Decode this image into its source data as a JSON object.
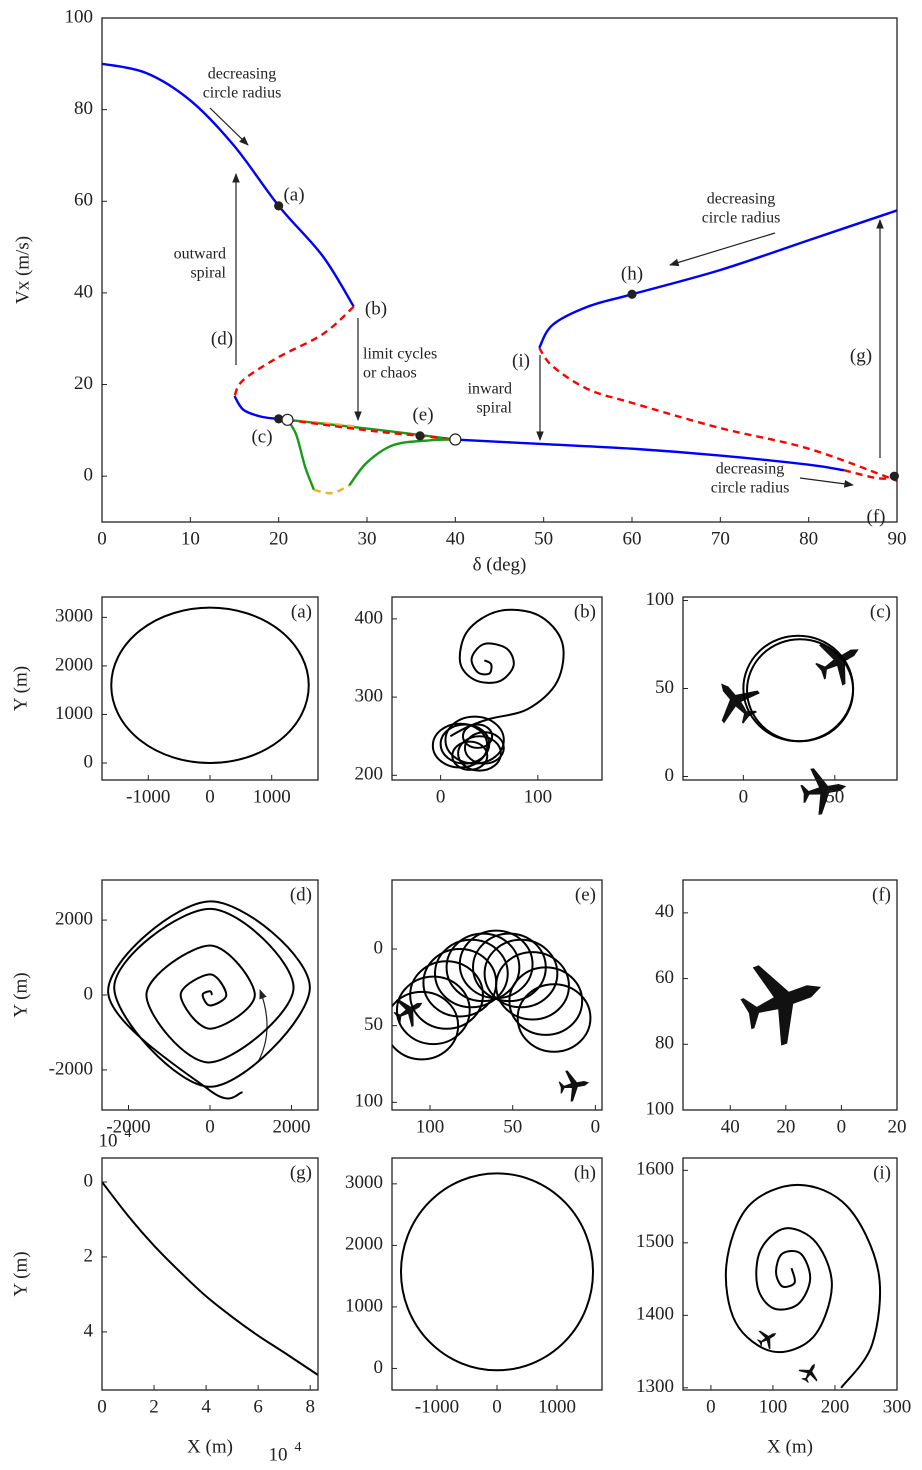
{
  "chart_data": [
    {
      "type": "line",
      "xlabel": "δ (deg)",
      "ylabel": "Vx (m/s)",
      "xlim": [
        0,
        90
      ],
      "ylim": [
        -10,
        100
      ],
      "xticks": [
        0,
        10,
        20,
        30,
        40,
        50,
        60,
        70,
        80,
        90
      ],
      "yticks": [
        0,
        20,
        40,
        60,
        80,
        100
      ],
      "series": [
        {
          "color": "#0000ff",
          "dash": false,
          "x": [
            0,
            5,
            10,
            15,
            20,
            25,
            28.5
          ],
          "y": [
            90,
            88,
            82,
            72,
            59,
            48,
            37
          ]
        },
        {
          "color": "#ff0000",
          "dash": true,
          "x": [
            28.5,
            25,
            20,
            16,
            15
          ],
          "y": [
            37,
            31,
            26,
            21,
            17.5
          ]
        },
        {
          "color": "#0000ff",
          "dash": false,
          "x": [
            15,
            16,
            18,
            20,
            21
          ],
          "y": [
            17.5,
            14.5,
            13,
            12.5,
            12.3
          ]
        },
        {
          "color": "#1a9a1a",
          "dash": false,
          "x": [
            21,
            30,
            36,
            40
          ],
          "y": [
            12.3,
            10.4,
            9,
            8
          ]
        },
        {
          "color": "#f0b030",
          "dash": true,
          "x": [
            21,
            25,
            29
          ],
          "y": [
            12.3,
            11.6,
            10.8
          ]
        },
        {
          "color": "#ff0000",
          "dash": true,
          "x": [
            21,
            30,
            36,
            40
          ],
          "y": [
            12.3,
            10,
            8.8,
            8
          ]
        },
        {
          "color": "#1a9a1a",
          "dash": false,
          "x": [
            21,
            22,
            23,
            24
          ],
          "y": [
            12.3,
            9,
            2,
            -3
          ]
        },
        {
          "color": "#f0b030",
          "dash": true,
          "x": [
            24,
            26,
            28
          ],
          "y": [
            -3,
            -3.7,
            -2
          ]
        },
        {
          "color": "#1a9a1a",
          "dash": false,
          "x": [
            28,
            30,
            33,
            37,
            40
          ],
          "y": [
            -2,
            3,
            6.8,
            7.8,
            8
          ]
        },
        {
          "color": "#0000ff",
          "dash": false,
          "x": [
            40,
            50,
            60,
            70,
            80,
            84
          ],
          "y": [
            8,
            7,
            6,
            4.5,
            2.5,
            1.3
          ]
        },
        {
          "color": "#ff0000",
          "dash": true,
          "x": [
            84,
            88,
            90
          ],
          "y": [
            1.3,
            -0.5,
            0
          ]
        },
        {
          "color": "#0000ff",
          "dash": false,
          "x": [
            49.5,
            51,
            55,
            60,
            70,
            80,
            90
          ],
          "y": [
            28,
            33,
            37,
            39.7,
            45,
            51.5,
            58
          ]
        },
        {
          "color": "#ff0000",
          "dash": true,
          "x": [
            49.5,
            51,
            55,
            60,
            70,
            80,
            90
          ],
          "y": [
            28,
            24,
            19,
            16,
            10.5,
            6,
            -1
          ]
        }
      ],
      "markers": [
        {
          "fill": "#222",
          "x": [
            20,
            60,
            36,
            20,
            89.7
          ],
          "y": [
            59,
            39.7,
            8.8,
            12.5,
            0
          ]
        },
        {
          "fill": "#fff",
          "x": [
            21,
            40
          ],
          "y": [
            12.3,
            8
          ]
        }
      ],
      "annotations": [
        {
          "lines": [
            "decreasing",
            "circle radius"
          ]
        },
        {
          "lines": [
            "outward",
            "spiral"
          ]
        },
        {
          "lines": [
            "limit cycles",
            "or chaos"
          ]
        },
        {
          "lines": [
            "inward",
            "spiral"
          ]
        },
        {
          "lines": [
            "decreasing",
            "circle radius"
          ]
        },
        {
          "lines": [
            "decreasing",
            "circle radius"
          ]
        },
        {
          "lines": [
            "(a)"
          ]
        },
        {
          "lines": [
            "(b)"
          ]
        },
        {
          "lines": [
            "(c)"
          ]
        },
        {
          "lines": [
            "(d)"
          ]
        },
        {
          "lines": [
            "(e)"
          ]
        },
        {
          "lines": [
            "(f)"
          ]
        },
        {
          "lines": [
            "(g)"
          ]
        },
        {
          "lines": [
            "(h)"
          ]
        },
        {
          "lines": [
            "(i)"
          ]
        }
      ]
    },
    {
      "type": "line",
      "label": "(a)",
      "ylabel": "Y (m)",
      "xlim": [
        -1750,
        1750
      ],
      "ylim": [
        -350,
        3420
      ],
      "xticks": [
        -1000,
        0,
        1000
      ],
      "yticks": [
        0,
        1000,
        2000,
        3000
      ],
      "series": [
        {
          "color": "#000",
          "cx": [
            0
          ],
          "cy": [
            1600
          ],
          "r": [
            1600
          ]
        }
      ]
    },
    {
      "type": "line",
      "label": "(b)",
      "xlim": [
        -50,
        166
      ],
      "ylim": [
        194,
        428
      ],
      "xticks": [
        0,
        100
      ],
      "yticks": [
        200,
        300,
        400
      ],
      "series": [
        {
          "color": "#000",
          "x": [
            45,
            52,
            50,
            38,
            32,
            45,
            68,
            75,
            60,
            35,
            20,
            28,
            60,
            100,
            125,
            120,
            90,
            50,
            28,
            10
          ],
          "y": [
            347,
            342,
            330,
            332,
            350,
            368,
            362,
            340,
            320,
            322,
            345,
            385,
            410,
            405,
            370,
            320,
            285,
            272,
            262,
            250
          ]
        },
        {
          "color": "#000",
          "cx": [
            25,
            35,
            45,
            30,
            40,
            20,
            38
          ],
          "cy": [
            240,
            245,
            235,
            225,
            228,
            238,
            250
          ],
          "r": [
            25,
            30,
            20,
            18,
            22,
            28,
            15
          ]
        }
      ]
    },
    {
      "type": "line",
      "label": "(c)",
      "xlim": [
        -33,
        84
      ],
      "ylim": [
        -2,
        102
      ],
      "xticks": [
        0,
        50
      ],
      "yticks": [
        0,
        50,
        100
      ],
      "series": [
        {
          "color": "#000",
          "cx": [
            30,
            31
          ],
          "cy": [
            50,
            49
          ],
          "r": [
            30,
            29
          ]
        }
      ]
    },
    {
      "type": "line",
      "label": "(d)",
      "ylabel": "Y (m)",
      "xlim": [
        -2650,
        2650
      ],
      "ylim": [
        -3070,
        3070
      ],
      "xticks": [
        -2000,
        0,
        2000
      ],
      "yticks": [
        2000,
        0,
        -2000
      ],
      "series": [
        {
          "color": "#000",
          "x": [
            50,
            0,
            -180,
            0,
            400,
            0,
            -720,
            0,
            1100,
            0,
            -1560,
            0,
            2050,
            0,
            -2350,
            0,
            2450,
            0,
            -2500,
            0,
            800
          ],
          "y": [
            0,
            100,
            0,
            -280,
            0,
            550,
            0,
            -900,
            0,
            1320,
            0,
            -1800,
            200,
            2300,
            200,
            -2450,
            200,
            2500,
            100,
            -2550,
            -2600
          ]
        }
      ]
    },
    {
      "type": "line",
      "label": "(e)",
      "xlim": [
        123,
        -4
      ],
      "ylim": [
        105,
        -45
      ],
      "xticks": [
        100,
        50,
        0
      ],
      "yticks": [
        0,
        50,
        100
      ],
      "series": [
        {
          "color": "#000",
          "cx": [
            105,
            98,
            90,
            82,
            75,
            68,
            60,
            52,
            45,
            38,
            30,
            25
          ],
          "cy": [
            50,
            40,
            30,
            22,
            16,
            12,
            10,
            12,
            16,
            24,
            34,
            45
          ],
          "r": [
            22,
            22,
            22,
            22,
            22,
            22,
            22,
            22,
            22,
            22,
            22,
            22
          ]
        }
      ]
    },
    {
      "type": "line",
      "label": "(f)",
      "xlim": [
        57,
        -20
      ],
      "ylim": [
        100,
        30
      ],
      "xticks": [
        40,
        20,
        0,
        {
          "value": -20,
          "label": "20"
        }
      ],
      "yticks": [
        40,
        60,
        80,
        100
      ],
      "series": []
    },
    {
      "type": "line",
      "label": "(g)",
      "ylabel": "Y (m)",
      "xlabel": "X (m)",
      "xlim": [
        0,
        8.3
      ],
      "ylim": [
        5.55,
        -0.64
      ],
      "xticks": [
        0,
        2,
        4,
        6,
        8
      ],
      "yticks": [
        0,
        2,
        4
      ],
      "ymultiplier": {
        "base": "10",
        "exp": "4"
      },
      "xmultiplier": {
        "base": "10",
        "exp": "4"
      },
      "series": [
        {
          "color": "#000",
          "x": [
            0,
            1,
            2,
            3,
            4,
            5,
            6,
            7,
            8.3
          ],
          "y": [
            0,
            0.9,
            1.7,
            2.4,
            3.05,
            3.6,
            4.1,
            4.55,
            5.15
          ]
        }
      ]
    },
    {
      "type": "line",
      "label": "(h)",
      "xlim": [
        -1750,
        1750
      ],
      "ylim": [
        -350,
        3420
      ],
      "xticks": [
        -1000,
        0,
        1000
      ],
      "yticks": [
        0,
        1000,
        2000,
        3000
      ],
      "series": [
        {
          "color": "#000",
          "cx": [
            0
          ],
          "cy": [
            1570
          ],
          "r": [
            1600
          ]
        }
      ]
    },
    {
      "type": "line",
      "label": "(i)",
      "xlabel": "X (m)",
      "xlim": [
        -45,
        300
      ],
      "ylim": [
        1297,
        1617
      ],
      "xticks": [
        0,
        100,
        200,
        300
      ],
      "yticks": [
        1300,
        1400,
        1500,
        1600
      ],
      "series": [
        {
          "color": "#000",
          "x": [
            210,
            260,
            270,
            220,
            140,
            60,
            25,
            40,
            100,
            165,
            195,
            170,
            120,
            80,
            75,
            100,
            140,
            160,
            145,
            115,
            105,
            115,
            135,
            130
          ],
          "y": [
            1300,
            1360,
            1460,
            1550,
            1580,
            1550,
            1470,
            1390,
            1350,
            1370,
            1440,
            1500,
            1520,
            1490,
            1440,
            1410,
            1415,
            1450,
            1485,
            1485,
            1460,
            1440,
            1445,
            1465
          ]
        }
      ]
    }
  ]
}
